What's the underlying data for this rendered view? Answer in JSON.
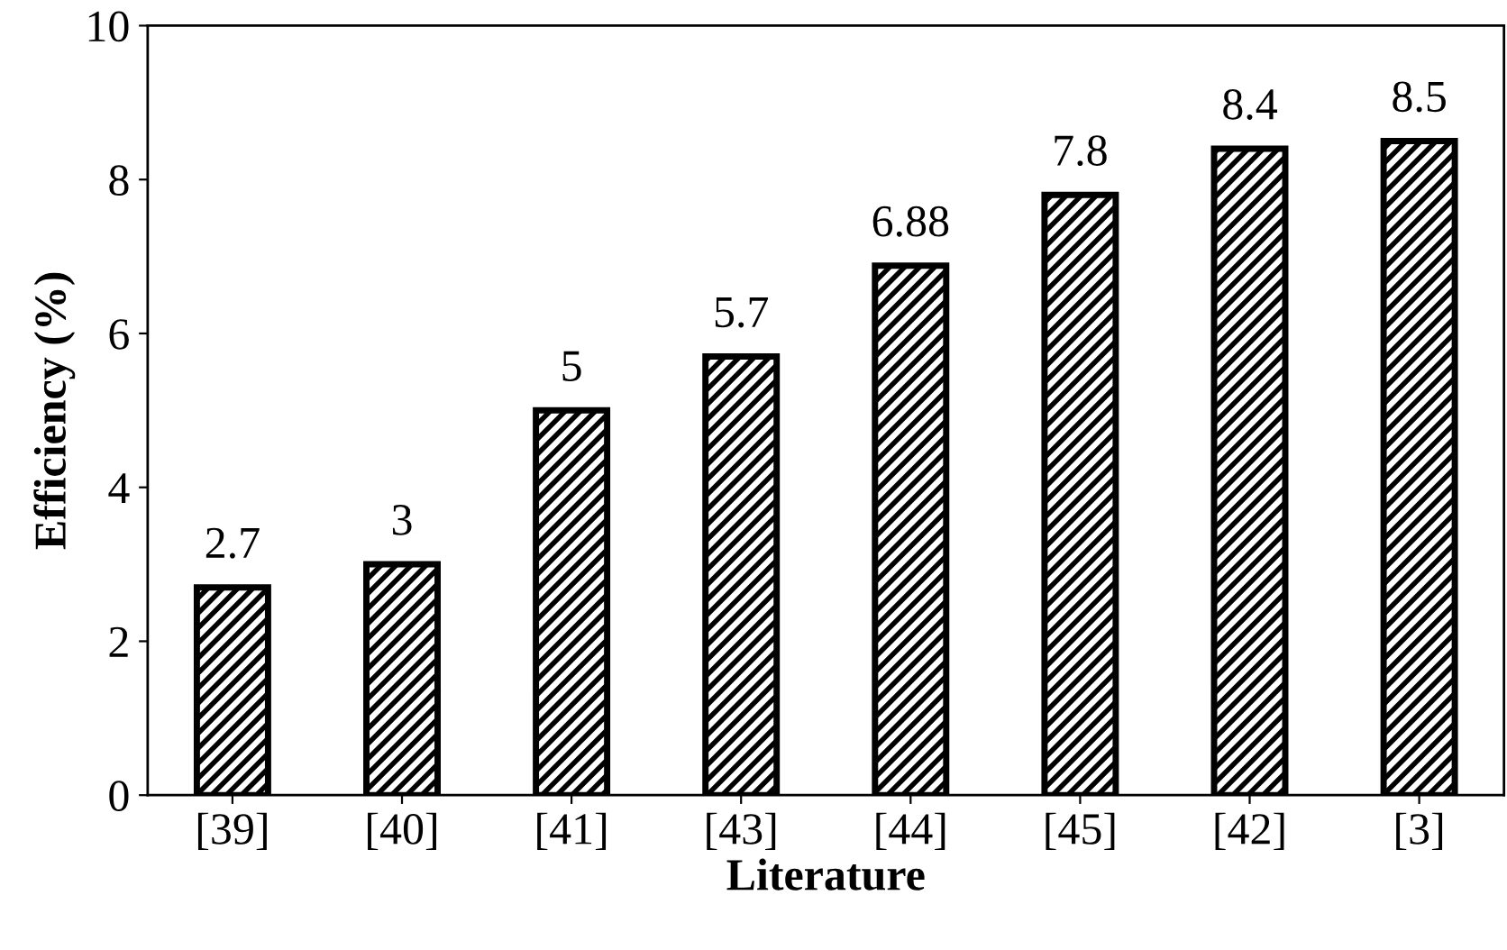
{
  "chart_data": {
    "type": "bar",
    "xlabel": "Literature",
    "ylabel": "Efficiency (%)",
    "categories": [
      "[39]",
      "[40]",
      "[41]",
      "[43]",
      "[44]",
      "[45]",
      "[42]",
      "[3]"
    ],
    "values": [
      2.7,
      3,
      5,
      5.7,
      6.88,
      7.8,
      8.4,
      8.5
    ],
    "color": "#000000",
    "ylim": [
      0,
      10
    ],
    "yticks": [
      0,
      2,
      4,
      6,
      8,
      10
    ],
    "grid": false,
    "data_labels": true
  }
}
